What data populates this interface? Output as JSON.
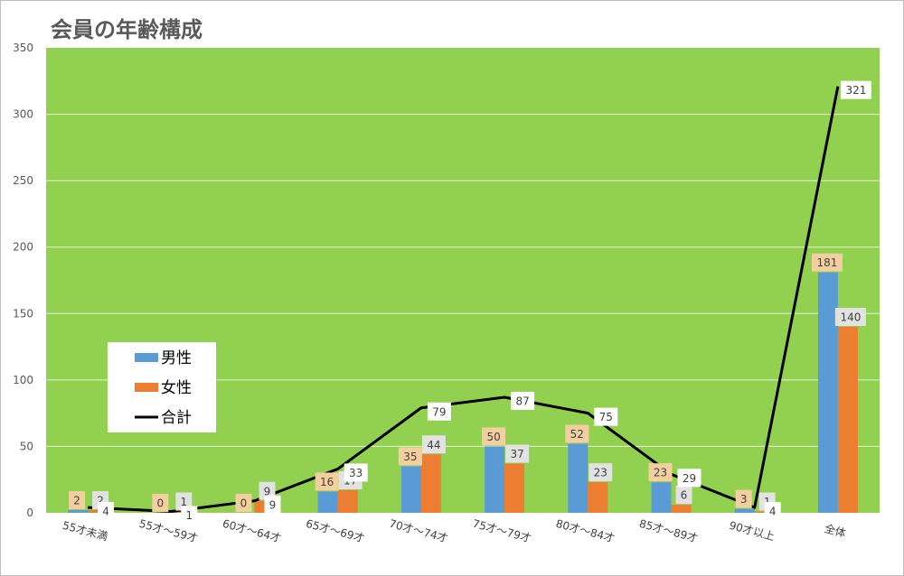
{
  "chart_data": {
    "type": "bar",
    "title": "会員の年齢構成",
    "categories": [
      "55才未満",
      "55才～59才",
      "60才～64才",
      "65才～69才",
      "70才～74才",
      "75才～79才",
      "80才～84才",
      "85才～89才",
      "90才以上",
      "全体"
    ],
    "series": [
      {
        "name": "男性",
        "type": "bar",
        "values": [
          2,
          0,
          0,
          16,
          35,
          50,
          52,
          23,
          3,
          181
        ]
      },
      {
        "name": "女性",
        "type": "bar",
        "values": [
          2,
          1,
          9,
          17,
          44,
          37,
          23,
          6,
          1,
          140
        ]
      },
      {
        "name": "合計",
        "type": "line",
        "values": [
          4,
          1,
          9,
          33,
          79,
          87,
          75,
          29,
          4,
          321
        ]
      }
    ],
    "ylim": [
      0,
      350
    ],
    "yticks": [
      0,
      50,
      100,
      150,
      200,
      250,
      300,
      350
    ],
    "grid": true,
    "legend_position": "inside-left",
    "colors": {
      "plot_background": "#92d050",
      "male": "#5b9bd5",
      "female": "#ed7d31",
      "total": "#000000",
      "male_label_bg": "#f3cf9f",
      "female_label_bg": "#e2e2e2",
      "total_label_bg": "#ffffff",
      "gridline": "#e6f3d6"
    }
  }
}
